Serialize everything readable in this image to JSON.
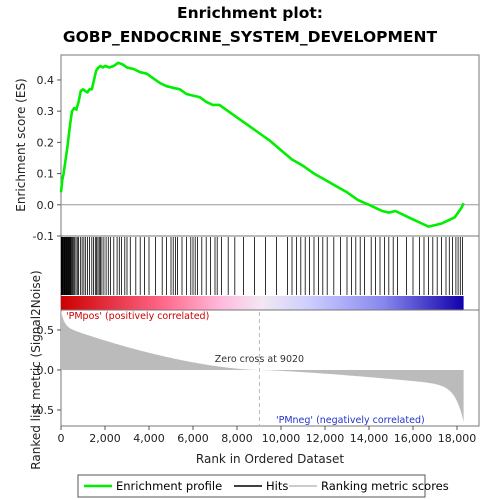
{
  "chart_data": {
    "type": "line",
    "title_line1": "Enrichment plot:",
    "title_line2": "GOBP_ENDOCRINE_SYSTEM_DEVELOPMENT",
    "es_ylabel": "Enrichment score (ES)",
    "metric_ylabel": "Ranked list metric (Signal2Noise)",
    "xlabel": "Rank in Ordered Dataset",
    "xlim": [
      0,
      19000
    ],
    "es_ylim": [
      -0.1,
      0.48
    ],
    "metric_ylim": [
      -0.7,
      0.75
    ],
    "x_ticks": [
      0,
      2000,
      4000,
      6000,
      8000,
      10000,
      12000,
      14000,
      16000,
      18000
    ],
    "x_tick_labels": [
      "0",
      "2,000",
      "4,000",
      "6,000",
      "8,000",
      "10,000",
      "12,000",
      "14,000",
      "16,000",
      "18,000"
    ],
    "es_ticks": [
      -0.1,
      0.0,
      0.1,
      0.2,
      0.3,
      0.4
    ],
    "es_tick_labels": [
      "-0.1",
      "0.0",
      "0.1",
      "0.2",
      "0.3",
      "0.4"
    ],
    "metric_ticks": [
      -0.5,
      0.0,
      0.5
    ],
    "metric_tick_labels": [
      "-0.5",
      "0.0",
      "0.5"
    ],
    "n_genes": 18300,
    "zero_cross": 9020,
    "zero_cross_label": "Zero cross at 9020",
    "pos_label": "'PMpos' (positively correlated)",
    "neg_label": "'PMneg' (negatively correlated)",
    "series": [
      {
        "name": "Enrichment profile",
        "color": "#00ee00",
        "x": [
          0,
          60,
          120,
          200,
          280,
          350,
          420,
          500,
          600,
          700,
          800,
          900,
          1000,
          1100,
          1200,
          1300,
          1400,
          1500,
          1600,
          1700,
          1800,
          1900,
          2000,
          2200,
          2400,
          2600,
          2800,
          3000,
          3300,
          3600,
          3900,
          4200,
          4500,
          4800,
          5100,
          5400,
          5700,
          6000,
          6300,
          6600,
          6900,
          7200,
          7600,
          8000,
          8500,
          9000,
          9500,
          10000,
          10500,
          11000,
          11500,
          12000,
          12500,
          13000,
          13500,
          14000,
          14300,
          14600,
          14900,
          15200,
          15500,
          15800,
          16100,
          16400,
          16700,
          17000,
          17300,
          17600,
          17900,
          18100,
          18200,
          18300
        ],
        "y": [
          0.04,
          0.08,
          0.1,
          0.14,
          0.18,
          0.22,
          0.26,
          0.3,
          0.31,
          0.305,
          0.33,
          0.365,
          0.37,
          0.365,
          0.36,
          0.37,
          0.37,
          0.4,
          0.43,
          0.44,
          0.445,
          0.44,
          0.445,
          0.44,
          0.445,
          0.455,
          0.45,
          0.44,
          0.435,
          0.425,
          0.42,
          0.405,
          0.39,
          0.38,
          0.375,
          0.37,
          0.355,
          0.35,
          0.345,
          0.33,
          0.32,
          0.32,
          0.3,
          0.28,
          0.255,
          0.23,
          0.205,
          0.175,
          0.145,
          0.125,
          0.1,
          0.08,
          0.06,
          0.04,
          0.015,
          0.0,
          -0.01,
          -0.02,
          -0.025,
          -0.02,
          -0.03,
          -0.04,
          -0.05,
          -0.06,
          -0.07,
          -0.065,
          -0.06,
          -0.05,
          -0.04,
          -0.02,
          -0.01,
          0.005
        ]
      }
    ],
    "hit_positions": [
      15,
      35,
      60,
      85,
      110,
      140,
      170,
      200,
      230,
      260,
      290,
      320,
      350,
      380,
      410,
      440,
      480,
      520,
      560,
      620,
      680,
      740,
      800,
      880,
      960,
      1040,
      1120,
      1200,
      1300,
      1400,
      1480,
      1560,
      1620,
      1680,
      1740,
      1800,
      1860,
      1950,
      2050,
      2150,
      2250,
      2400,
      2550,
      2650,
      2750,
      2900,
      3000,
      3150,
      3400,
      3600,
      3800,
      4000,
      4300,
      4600,
      4800,
      5000,
      5100,
      5200,
      5300,
      5500,
      5700,
      5900,
      6000,
      6100,
      6200,
      6400,
      6600,
      6800,
      7000,
      7100,
      7300,
      7600,
      7900,
      8300,
      8800,
      9300,
      9800,
      10300,
      10500,
      10700,
      10900,
      11100,
      11300,
      11500,
      11700,
      11900,
      12100,
      12400,
      12700,
      13000,
      13200,
      13400,
      13600,
      13800,
      14100,
      14300,
      14500,
      14700,
      14900,
      15100,
      15300,
      15700,
      16000,
      16300,
      16500,
      16700,
      16900,
      17100,
      17300,
      17500,
      17650,
      17800,
      17950,
      18050,
      18150,
      18250
    ],
    "legend": [
      {
        "label": "Enrichment profile",
        "color": "#00ee00"
      },
      {
        "label": "Hits",
        "color": "#000000"
      },
      {
        "label": "Ranking metric scores",
        "color": "#bbbbbb"
      }
    ],
    "grid": false
  }
}
